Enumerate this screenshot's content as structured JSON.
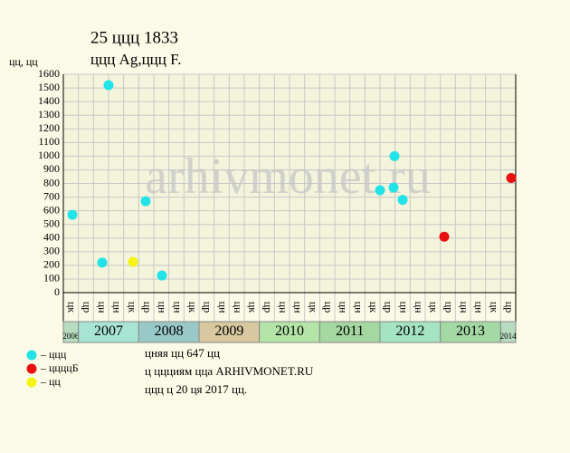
{
  "chart_data": {
    "type": "scatter",
    "title": "25 ццц 1833",
    "subtitle": "ццц Ag,ццц F.",
    "y_label": "цц, цц",
    "watermark": "arhivmonet.ru",
    "xlim": [
      2006.75,
      2014.25
    ],
    "ylim": [
      0,
      1600
    ],
    "yticks": [
      0,
      100,
      200,
      300,
      400,
      500,
      600,
      700,
      800,
      900,
      1000,
      1100,
      1200,
      1300,
      1400,
      1500,
      1600
    ],
    "grid": true,
    "quarter_labels": [
      "цк",
      "цр",
      "цн",
      "цн",
      "цк",
      "цр",
      "цн",
      "цн",
      "цк",
      "цр",
      "цн",
      "цн",
      "цк",
      "цр",
      "цн",
      "цн",
      "цк",
      "цр",
      "цн",
      "цн",
      "цк",
      "цр",
      "цн",
      "цн",
      "цк",
      "цр",
      "цн",
      "цн",
      "цк",
      "цр"
    ],
    "years": [
      "2006",
      "2007",
      "2008",
      "2009",
      "2010",
      "2011",
      "2012",
      "2013",
      "2014"
    ],
    "year_colors": [
      "#b8dcc0",
      "#a8e4d4",
      "#98c8c8",
      "#d8c8a0",
      "#b4e4a8",
      "#a4d8a0",
      "#a4e4c4",
      "#a4d8a4",
      "#b8dcc0"
    ],
    "series": [
      {
        "name": "– ццц",
        "color": "#22e4e8",
        "x": [
          2006.9,
          2007.395,
          2007.5,
          2008.115,
          2008.385,
          2012.0,
          2012.225,
          2012.24,
          2012.375
        ],
        "values": [
          570,
          220,
          1520,
          670,
          125,
          750,
          770,
          1000,
          680
        ]
      },
      {
        "name": "– ццццБ",
        "color": "#e81010",
        "x": [
          2013.065,
          2014.175
        ],
        "values": [
          410,
          840
        ]
      },
      {
        "name": "– цц",
        "color": "#f4f410",
        "x": [
          2007.905
        ],
        "values": [
          225
        ]
      }
    ],
    "notes": [
      "цняя цц 647 цц",
      "ц ццциям цца ARHIVMONET.RU",
      "ццц ц 20 ця 2017 цц."
    ]
  }
}
